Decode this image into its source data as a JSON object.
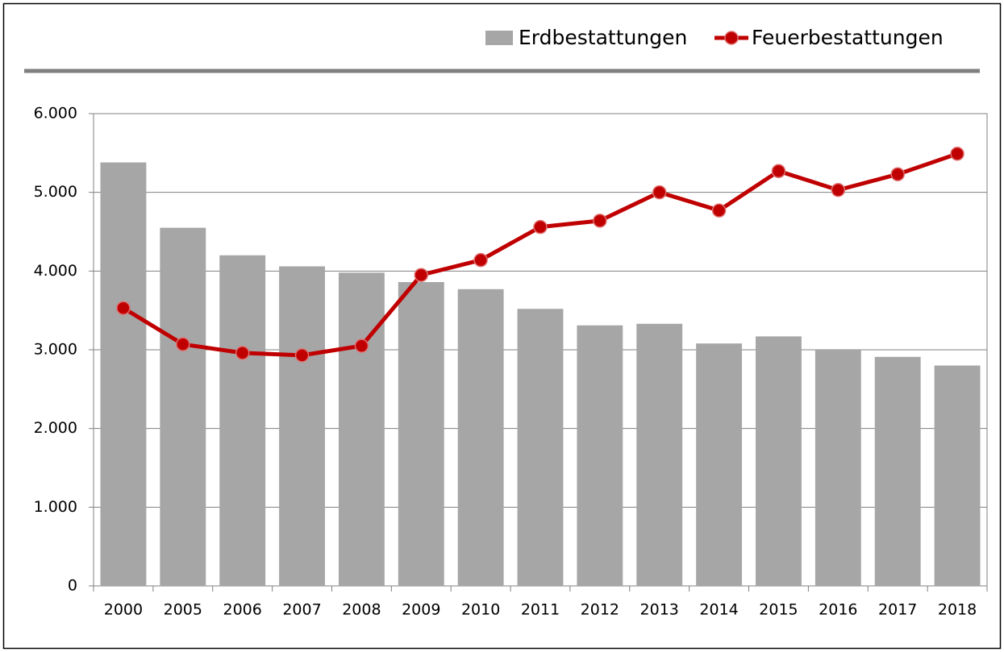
{
  "chart_data": {
    "type": "bar_line",
    "categories": [
      "2000",
      "2005",
      "2006",
      "2007",
      "2008",
      "2009",
      "2010",
      "2011",
      "2012",
      "2013",
      "2014",
      "2015",
      "2016",
      "2017",
      "2018"
    ],
    "series": [
      {
        "name": "Erdbestattungen",
        "type": "bar",
        "color": "#a6a6a6",
        "values": [
          5380,
          4550,
          4200,
          4060,
          3980,
          3860,
          3770,
          3520,
          3310,
          3330,
          3080,
          3170,
          3000,
          2910,
          2800
        ]
      },
      {
        "name": "Feuerbestattungen",
        "type": "line",
        "color": "#c00000",
        "values": [
          3530,
          3070,
          2960,
          2930,
          3050,
          3950,
          4140,
          4560,
          4640,
          5000,
          4770,
          5270,
          5030,
          5230,
          5490
        ]
      }
    ],
    "ylim": [
      0,
      6000
    ],
    "yticks": [
      0,
      {
        "value": 1000,
        "label": "1.000"
      },
      {
        "value": 2000,
        "label": "2.000"
      },
      {
        "value": 3000,
        "label": "3.000"
      },
      {
        "value": 4000,
        "label": "4.000"
      },
      {
        "value": 5000,
        "label": "5.000"
      },
      {
        "value": 6000,
        "label": "6.000"
      }
    ],
    "grid": true,
    "legend": "top-right"
  }
}
